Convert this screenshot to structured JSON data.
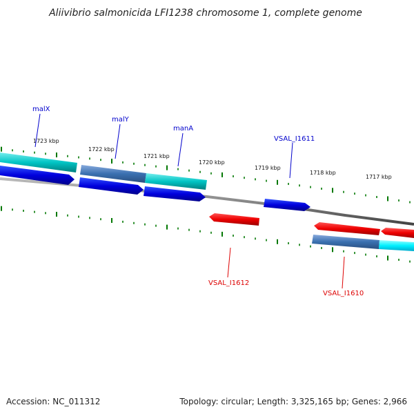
{
  "title": "Aliivibrio salmonicida LFI1238 chromosome 1, complete genome",
  "footer": {
    "accession": "Accession: NC_011312",
    "summary": "Topology: circular; Length: 3,325,165 bp; Genes: 2,966"
  },
  "colors": {
    "forward_gene": "#0000dd",
    "reverse_gene": "#ee0000",
    "forward_feature": "#00cccc",
    "reverse_feature": "#00ffff",
    "overlap_feature": "#3a7fc0",
    "backbone": "#808080",
    "tick": "#007700",
    "forward_label": "#0000cc",
    "reverse_label": "#dd0000"
  },
  "tick_labels": [
    "1723 kbp",
    "1722 kbp",
    "1721 kbp",
    "1720 kbp",
    "1719 kbp",
    "1718 kbp",
    "1717 kbp"
  ],
  "gene_labels": {
    "forward": [
      "malX",
      "malY",
      "manA",
      "VSAL_I1611"
    ],
    "reverse": [
      "VSAL_I1612",
      "VSAL_I1610"
    ]
  }
}
